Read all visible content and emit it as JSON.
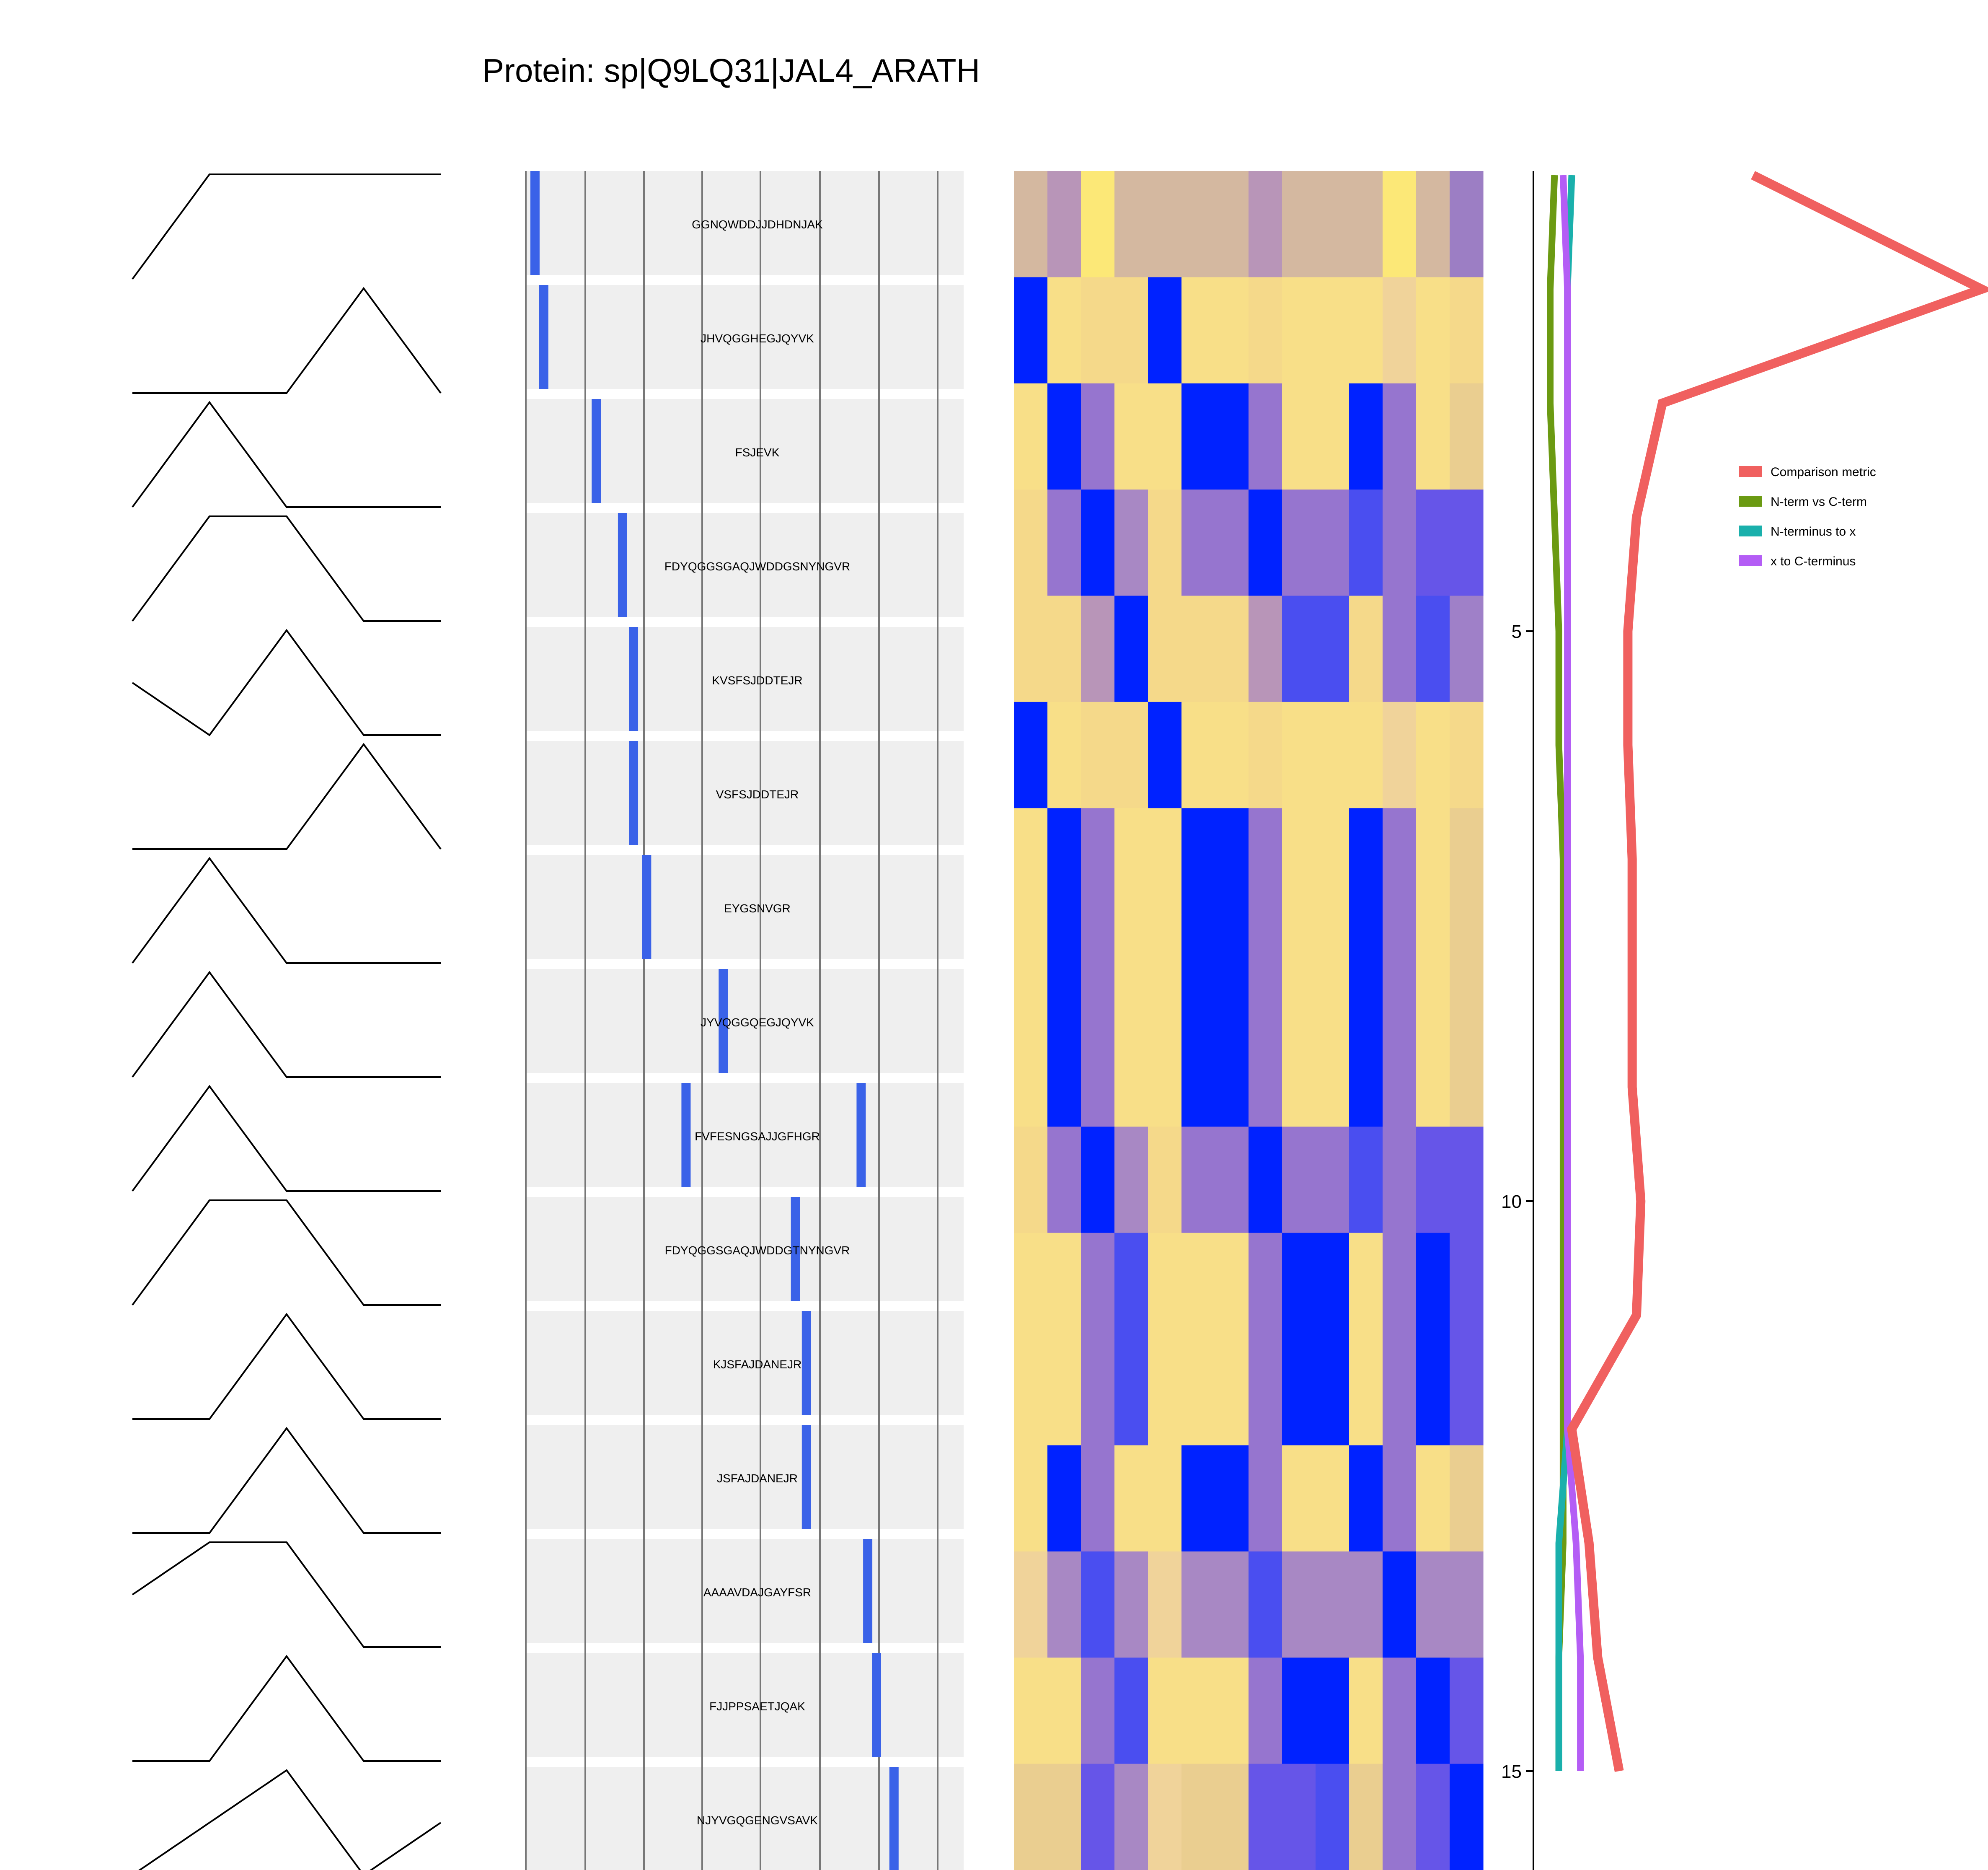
{
  "chart_data": {
    "type": "composite",
    "title": "Protein: sp|Q9LQ31|JAL4_ARATH",
    "peptides": [
      "GGNQWDDJJDHDNJAK",
      "JHVQGGHEGJQYVK",
      "FSJEVK",
      "FDYQGGSGAQJWDDGSNYNGVR",
      "KVSFSJDDTEJR",
      "VSFSJDDTEJR",
      "EYGSNVGR",
      "JYVQGGQEGJQYVK",
      "FVFESNGSAJJGFHGR",
      "FDYQGGSGAQJWDDGTNYNGVR",
      "KJSFAJDANEJR",
      "JSFAJDANEJR",
      "AAAAVDAJGAYFSR",
      "FJJPPSAETJQAK",
      "NJYVGQGENGVSAVK"
    ],
    "profiles": [
      [
        0,
        1,
        1,
        1,
        1
      ],
      [
        0,
        0,
        0,
        1,
        0
      ],
      [
        0,
        1,
        0,
        0,
        0
      ],
      [
        0,
        1,
        1,
        0,
        0
      ],
      [
        0.5,
        0,
        1,
        0,
        0
      ],
      [
        0,
        0,
        0,
        1,
        0
      ],
      [
        0,
        1,
        0,
        0,
        0
      ],
      [
        0,
        1,
        0,
        0,
        0
      ],
      [
        0,
        1,
        0,
        0,
        0
      ],
      [
        0,
        1,
        1,
        0,
        0
      ],
      [
        0,
        0,
        1,
        0,
        0
      ],
      [
        0,
        0,
        1,
        0,
        0
      ],
      [
        0.5,
        1,
        1,
        0,
        0
      ],
      [
        0,
        0,
        1,
        0,
        0
      ],
      [
        0,
        0.5,
        1,
        0,
        0.5
      ]
    ],
    "coverage_positions": [
      [
        0.02
      ],
      [
        0.04
      ],
      [
        0.16
      ],
      [
        0.22
      ],
      [
        0.245
      ],
      [
        0.245
      ],
      [
        0.275
      ],
      [
        0.45
      ],
      [
        0.365,
        0.765
      ],
      [
        0.615
      ],
      [
        0.64
      ],
      [
        0.64
      ],
      [
        0.78
      ],
      [
        0.8
      ],
      [
        0.84
      ]
    ],
    "heatmap": {
      "colors": {
        "0": "#d4b8a0",
        "1": "#b895b8",
        "2": "#fce877",
        "3": "#9c7ec4",
        "4": "#0022ff",
        "5": "#f8df88",
        "6": "#f5d98a",
        "7": "#f1d88c",
        "8": "#9675cf",
        "9": "#4a4ef0",
        "10": "#a888c4",
        "11": "#6655e8",
        "12": "#f0d39a",
        "13": "#eace90",
        "14": "#9f80c8"
      },
      "matrix": [
        [
          0,
          1,
          2,
          0,
          0,
          0,
          0,
          1,
          0,
          0,
          0,
          2,
          0,
          3
        ],
        [
          4,
          5,
          6,
          6,
          4,
          5,
          5,
          6,
          5,
          5,
          5,
          12,
          5,
          6
        ],
        [
          5,
          4,
          8,
          5,
          5,
          4,
          4,
          8,
          5,
          5,
          4,
          8,
          5,
          13
        ],
        [
          6,
          8,
          4,
          10,
          6,
          8,
          8,
          4,
          8,
          8,
          9,
          8,
          11,
          11
        ],
        [
          6,
          6,
          1,
          4,
          6,
          6,
          6,
          1,
          9,
          9,
          6,
          8,
          9,
          14
        ],
        [
          4,
          5,
          6,
          6,
          4,
          5,
          5,
          6,
          5,
          5,
          5,
          12,
          5,
          6
        ],
        [
          5,
          4,
          8,
          5,
          5,
          4,
          4,
          8,
          5,
          5,
          4,
          8,
          5,
          13
        ],
        [
          5,
          4,
          8,
          5,
          5,
          4,
          4,
          8,
          5,
          5,
          4,
          8,
          5,
          13
        ],
        [
          5,
          4,
          8,
          5,
          5,
          4,
          4,
          8,
          5,
          5,
          4,
          8,
          5,
          13
        ],
        [
          6,
          8,
          4,
          10,
          6,
          8,
          8,
          4,
          8,
          8,
          9,
          8,
          11,
          11
        ],
        [
          5,
          5,
          8,
          9,
          5,
          5,
          5,
          8,
          4,
          4,
          5,
          8,
          4,
          11
        ],
        [
          5,
          5,
          8,
          9,
          5,
          5,
          5,
          8,
          4,
          4,
          5,
          8,
          4,
          11
        ],
        [
          5,
          4,
          8,
          5,
          5,
          4,
          4,
          8,
          5,
          5,
          4,
          8,
          5,
          13
        ],
        [
          12,
          10,
          9,
          10,
          12,
          10,
          10,
          9,
          10,
          10,
          10,
          4,
          10,
          10
        ],
        [
          5,
          5,
          8,
          9,
          5,
          5,
          5,
          8,
          4,
          4,
          5,
          8,
          4,
          11
        ],
        [
          13,
          13,
          11,
          10,
          12,
          13,
          13,
          11,
          11,
          9,
          13,
          8,
          11,
          4
        ]
      ]
    },
    "line_chart": {
      "type": "line",
      "x": [
        1,
        2,
        3,
        4,
        5,
        6,
        7,
        8,
        9,
        10,
        11,
        12,
        13,
        14,
        15
      ],
      "ticks": [
        5,
        10,
        15
      ],
      "series": [
        {
          "name": "Comparison metric",
          "color": "#f0605f",
          "values": [
            0.47,
            1.0,
            0.26,
            0.2,
            0.18,
            0.18,
            0.19,
            0.19,
            0.19,
            0.21,
            0.2,
            0.05,
            0.09,
            0.11,
            0.16
          ]
        },
        {
          "name": "N-term vs C-term",
          "color": "#6b9a12",
          "values": [
            0.01,
            0.0,
            0.0,
            0.01,
            0.02,
            0.02,
            0.03,
            0.03,
            0.03,
            0.03,
            0.03,
            0.03,
            0.03,
            0.02,
            0.02
          ]
        },
        {
          "name": "N-terminus to x",
          "color": "#1ab0ac",
          "values": [
            0.05,
            0.04,
            0.04,
            0.04,
            0.04,
            0.04,
            0.04,
            0.04,
            0.04,
            0.04,
            0.04,
            0.04,
            0.02,
            0.02,
            0.02
          ]
        },
        {
          "name": "x to C-terminus",
          "color": "#b45df5",
          "values": [
            0.03,
            0.04,
            0.04,
            0.04,
            0.04,
            0.04,
            0.04,
            0.04,
            0.04,
            0.04,
            0.04,
            0.04,
            0.06,
            0.07,
            0.07
          ]
        }
      ]
    }
  }
}
